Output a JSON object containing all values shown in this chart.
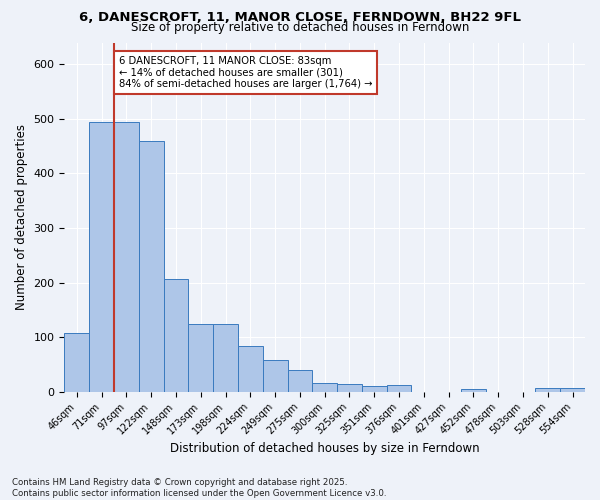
{
  "title1": "6, DANESCROFT, 11, MANOR CLOSE, FERNDOWN, BH22 9FL",
  "title2": "Size of property relative to detached houses in Ferndown",
  "xlabel": "Distribution of detached houses by size in Ferndown",
  "ylabel": "Number of detached properties",
  "categories": [
    "46sqm",
    "71sqm",
    "97sqm",
    "122sqm",
    "148sqm",
    "173sqm",
    "198sqm",
    "224sqm",
    "249sqm",
    "275sqm",
    "300sqm",
    "325sqm",
    "351sqm",
    "376sqm",
    "401sqm",
    "427sqm",
    "452sqm",
    "478sqm",
    "503sqm",
    "528sqm",
    "554sqm"
  ],
  "values": [
    107,
    494,
    494,
    460,
    207,
    125,
    125,
    83,
    58,
    39,
    16,
    15,
    11,
    12,
    0,
    0,
    5,
    0,
    0,
    6,
    6
  ],
  "bar_color": "#aec6e8",
  "bar_edge_color": "#3a7abf",
  "subject_line_color": "#c0392b",
  "annotation_text": "6 DANESCROFT, 11 MANOR CLOSE: 83sqm\n← 14% of detached houses are smaller (301)\n84% of semi-detached houses are larger (1,764) →",
  "annotation_box_color": "#ffffff",
  "annotation_box_edge": "#c0392b",
  "footer_text": "Contains HM Land Registry data © Crown copyright and database right 2025.\nContains public sector information licensed under the Open Government Licence v3.0.",
  "ylim": [
    0,
    640
  ],
  "background_color": "#eef2f9",
  "grid_color": "#ffffff"
}
